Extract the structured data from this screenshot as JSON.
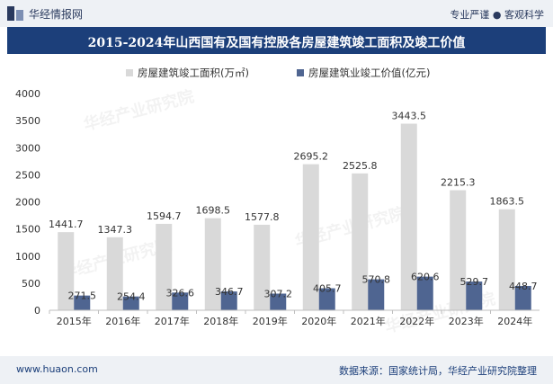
{
  "header": {
    "brand": "华经情报网",
    "right_text": "专业严谨 ● 客观科学",
    "brand_color": "#2a3a5e"
  },
  "title": "2015-2024年山西国有及国有控股各房屋建筑竣工面积及竣工价值",
  "watermark": "华经产业研究院",
  "footer": {
    "left": "www.huaon.com",
    "right": "数据来源：国家统计局，华经产业研究院整理"
  },
  "chart_data": {
    "type": "bar",
    "categories": [
      "2015年",
      "2016年",
      "2017年",
      "2018年",
      "2019年",
      "2020年",
      "2021年",
      "2022年",
      "2023年",
      "2024年"
    ],
    "series": [
      {
        "name": "房屋建筑竣工面积(万㎡)",
        "values": [
          1441.7,
          1347.3,
          1594.7,
          1698.5,
          1577.8,
          2695.2,
          2525.8,
          3443.5,
          2215.3,
          1863.5
        ],
        "color": "#d9d9d9"
      },
      {
        "name": "房屋建筑业竣工价值(亿元)",
        "values": [
          271.5,
          254.4,
          326.6,
          346.7,
          307.2,
          405.7,
          570.8,
          620.6,
          529.7,
          448.7
        ],
        "color": "#4f6591"
      }
    ],
    "yticks": [
      "0",
      "500",
      "1000",
      "1500",
      "2000",
      "2500",
      "3000",
      "3500",
      "4000"
    ],
    "ylim": [
      0,
      4000
    ],
    "grid": false,
    "legend_position": "top-center"
  }
}
